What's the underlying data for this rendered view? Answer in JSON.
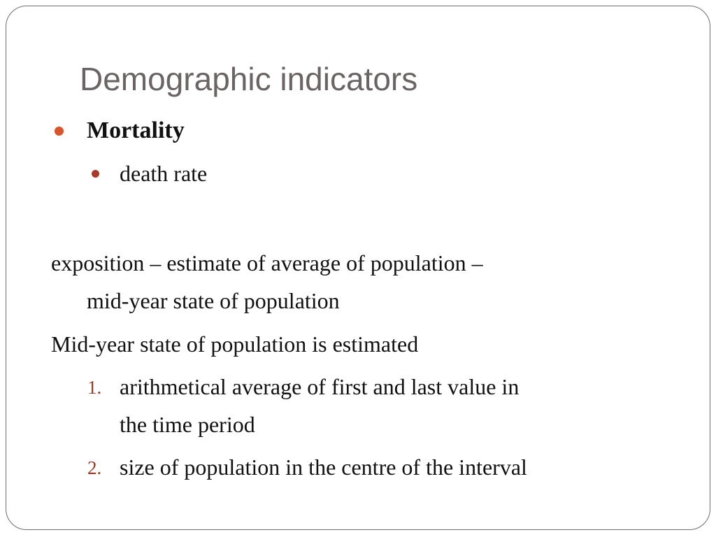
{
  "title": "Demographic indicators",
  "level1": {
    "label": "Mortality",
    "bullet_color": "#d9542a"
  },
  "level2": {
    "label": "death rate",
    "bullet_color": "#a83a28"
  },
  "paragraph1": {
    "line1": "exposition – estimate of average of population –",
    "line2": "mid-year state of population"
  },
  "paragraph2": "Mid-year state of population is estimated",
  "numbered_list": [
    {
      "number": "1.",
      "line1": "arithmetical average of first and last value in",
      "line2": "the time period"
    },
    {
      "number": "2.",
      "line1": "size of population in the centre of the interval"
    }
  ]
}
